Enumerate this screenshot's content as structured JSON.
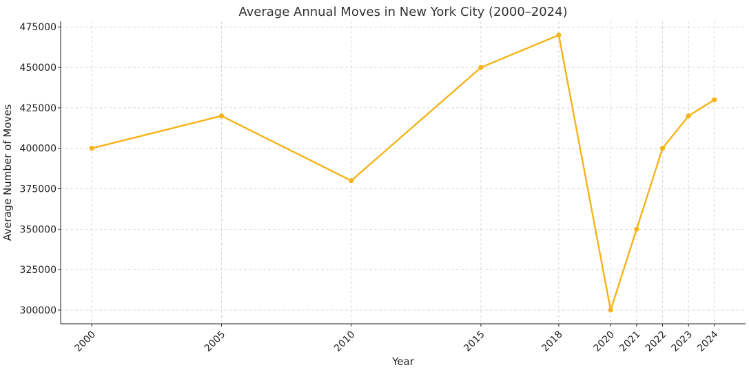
{
  "chart_data": {
    "type": "line",
    "title": "Average Annual Moves in New York City (2000–2024)",
    "xlabel": "Year",
    "ylabel": "Average Number of Moves",
    "x": [
      2000,
      2005,
      2010,
      2015,
      2018,
      2020,
      2021,
      2022,
      2023,
      2024
    ],
    "x_tick_labels": [
      "2000",
      "2005",
      "2010",
      "2015",
      "2018",
      "2020",
      "2021",
      "2022",
      "2023",
      "2024"
    ],
    "series": [
      {
        "values": [
          400000,
          420000,
          380000,
          450000,
          470000,
          300000,
          350000,
          400000,
          420000,
          430000
        ]
      }
    ],
    "y_ticks": [
      300000,
      325000,
      350000,
      375000,
      400000,
      425000,
      450000,
      475000
    ],
    "y_tick_labels": [
      "300000",
      "325000",
      "350000",
      "375000",
      "400000",
      "425000",
      "450000",
      "475000"
    ],
    "ylim": [
      291500,
      478500
    ],
    "xlim": [
      1998.8,
      2025.2
    ],
    "grid": true,
    "line_color": "#F5B316"
  }
}
